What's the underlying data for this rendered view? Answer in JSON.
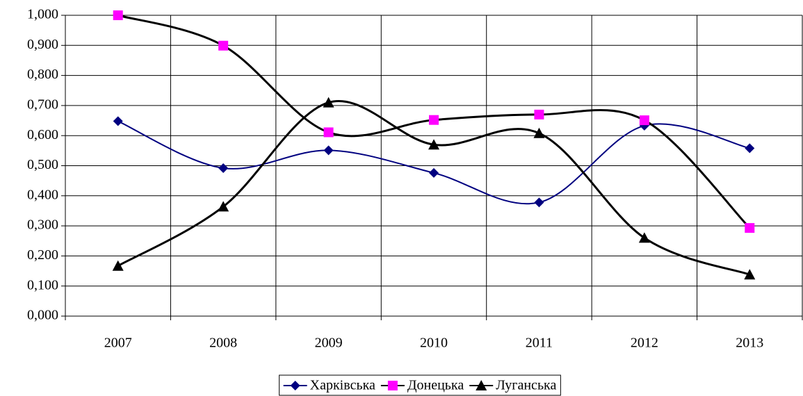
{
  "chart_data": {
    "type": "line",
    "categories": [
      "2007",
      "2008",
      "2009",
      "2010",
      "2011",
      "2012",
      "2013"
    ],
    "series": [
      {
        "name": "Харківська",
        "color": "#000080",
        "marker": "diamond",
        "marker_color": "#000080",
        "values": [
          0.648,
          0.492,
          0.551,
          0.476,
          0.378,
          0.633,
          0.558
        ]
      },
      {
        "name": "Донецька",
        "color": "#000000",
        "marker": "square",
        "marker_color": "#ff00ff",
        "values": [
          1.0,
          0.899,
          0.611,
          0.652,
          0.67,
          0.651,
          0.293
        ]
      },
      {
        "name": "Луганська",
        "color": "#000000",
        "marker": "triangle",
        "marker_color": "#000000",
        "values": [
          0.167,
          0.364,
          0.71,
          0.57,
          0.608,
          0.26,
          0.138
        ]
      }
    ],
    "ylim": [
      0,
      1
    ],
    "yticks": [
      {
        "value": 0,
        "label": "0,000"
      },
      {
        "value": 0.1,
        "label": "0,100"
      },
      {
        "value": 0.2,
        "label": "0,200"
      },
      {
        "value": 0.3,
        "label": "0,300"
      },
      {
        "value": 0.4,
        "label": "0,400"
      },
      {
        "value": 0.5,
        "label": "0,500"
      },
      {
        "value": 0.6,
        "label": "0,600"
      },
      {
        "value": 0.7,
        "label": "0,700"
      },
      {
        "value": 0.8,
        "label": "0,800"
      },
      {
        "value": 0.9,
        "label": "0,900"
      },
      {
        "value": 1,
        "label": "1,000"
      }
    ],
    "grid": true,
    "smooth": true,
    "legend": "bottom"
  }
}
